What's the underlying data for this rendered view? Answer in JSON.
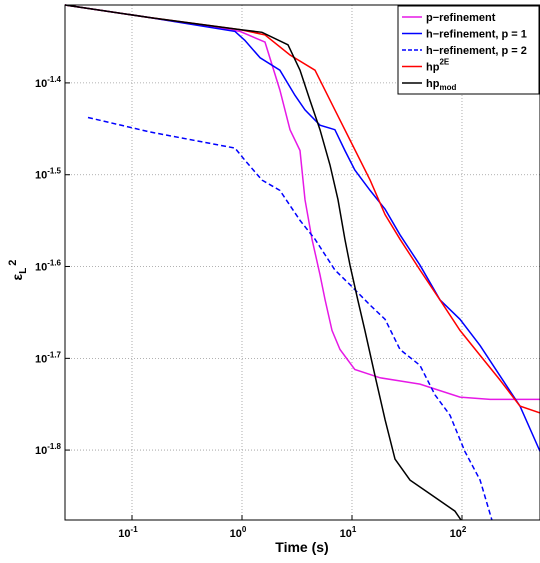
{
  "chart_data": {
    "type": "line",
    "xlabel": "Time (s)",
    "ylabel": {
      "text": "ε",
      "sub": "L",
      "sup": "2"
    },
    "xlog": true,
    "ylog": true,
    "grid": true,
    "legend": "top-right",
    "xlim": [
      0.0246,
      512
    ],
    "ylim": [
      0.0133,
      0.0484
    ],
    "xticks": [
      {
        "value": 0.1,
        "label": "10",
        "exponent": "-1"
      },
      {
        "value": 1,
        "label": "10",
        "exponent": "0"
      },
      {
        "value": 10,
        "label": "10",
        "exponent": "1"
      },
      {
        "value": 100,
        "label": "10",
        "exponent": "2"
      }
    ],
    "yticks": [
      {
        "value": 0.03981,
        "label": "10",
        "exponent": "-1.4"
      },
      {
        "value": 0.03162,
        "label": "10",
        "exponent": "-1.5"
      },
      {
        "value": 0.02512,
        "label": "10",
        "exponent": "-1.6"
      },
      {
        "value": 0.01995,
        "label": "10",
        "exponent": "-1.7"
      },
      {
        "value": 0.01585,
        "label": "10",
        "exponent": "-1.8"
      }
    ],
    "series": [
      {
        "name": "p−refinement",
        "color": "#e619e6",
        "dash": false,
        "x": [
          0.0246,
          0.146,
          0.96,
          1.62,
          2.21,
          2.73,
          3.37,
          3.74,
          4.33,
          5.12,
          5.69,
          6.58,
          7.78,
          10.6,
          18.0,
          41.5,
          95.9,
          180,
          512
        ],
        "values": [
          0.0484,
          0.0469,
          0.0453,
          0.0441,
          0.0391,
          0.0354,
          0.0336,
          0.0297,
          0.0269,
          0.0246,
          0.0231,
          0.0214,
          0.0204,
          0.0194,
          0.019,
          0.0187,
          0.0181,
          0.018,
          0.018
        ]
      },
      {
        "name": "h−refinement, p = 1",
        "color": "#0000ff",
        "dash": false,
        "x": [
          0.0246,
          0.146,
          0.863,
          1.06,
          1.46,
          2.21,
          3.03,
          3.74,
          5.12,
          7.0,
          8.63,
          10.6,
          14.6,
          20.0,
          27.3,
          41.5,
          63.1,
          95.9,
          146,
          221,
          337,
          512
        ],
        "values": [
          0.0484,
          0.0469,
          0.0453,
          0.0443,
          0.0424,
          0.0411,
          0.0386,
          0.0372,
          0.0358,
          0.0354,
          0.0336,
          0.032,
          0.0304,
          0.029,
          0.0272,
          0.0252,
          0.0231,
          0.022,
          0.0206,
          0.0191,
          0.0177,
          0.0158
        ]
      },
      {
        "name": "h−refinement, p = 2",
        "color": "#0000ff",
        "dash": true,
        "x": [
          0.0398,
          0.146,
          0.863,
          1.06,
          1.52,
          2.21,
          3.37,
          4.61,
          7.0,
          9.59,
          14.6,
          20.0,
          27.3,
          41.5,
          56.9,
          77.8,
          106,
          146,
          187
        ],
        "values": [
          0.0365,
          0.0352,
          0.0338,
          0.0328,
          0.0312,
          0.0304,
          0.0282,
          0.0269,
          0.0249,
          0.024,
          0.0228,
          0.022,
          0.0204,
          0.0196,
          0.0182,
          0.0173,
          0.0158,
          0.0147,
          0.0133
        ]
      },
      {
        "name": "hp",
        "name_sup": "2E",
        "color": "#ff0000",
        "dash": false,
        "x": [
          0.0246,
          0.146,
          0.96,
          1.62,
          2.73,
          4.61,
          7.0,
          9.59,
          14.6,
          20.0,
          27.3,
          41.5,
          63.1,
          95.9,
          146,
          221,
          337,
          512
        ],
        "values": [
          0.0484,
          0.0469,
          0.0455,
          0.0449,
          0.0427,
          0.0411,
          0.0372,
          0.0345,
          0.0312,
          0.0286,
          0.0269,
          0.0249,
          0.0231,
          0.0214,
          0.0201,
          0.0189,
          0.0177,
          0.0174
        ]
      },
      {
        "name": "hp",
        "name_sub": "mod",
        "color": "#000000",
        "dash": false,
        "x": [
          0.0246,
          0.146,
          0.96,
          1.52,
          2.62,
          3.37,
          4.15,
          5.12,
          6.31,
          7.46,
          8.63,
          9.59,
          11.3,
          13.1,
          16.2,
          20.0,
          24.6,
          33.7,
          51.2,
          86.3,
          97.9
        ],
        "values": [
          0.0484,
          0.0469,
          0.0455,
          0.0452,
          0.0438,
          0.0411,
          0.0381,
          0.0354,
          0.0324,
          0.0297,
          0.0269,
          0.0252,
          0.0231,
          0.0214,
          0.0191,
          0.0171,
          0.0155,
          0.0147,
          0.0142,
          0.0136,
          0.0133
        ]
      }
    ]
  }
}
